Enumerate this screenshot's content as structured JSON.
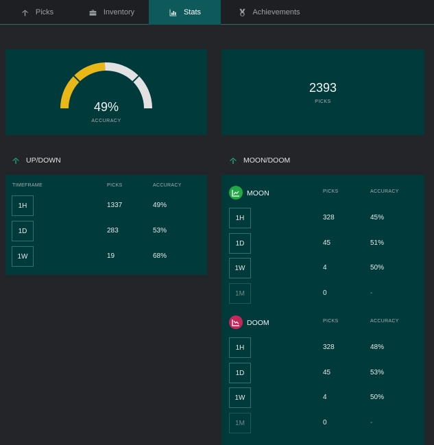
{
  "tabs": [
    {
      "label": "Picks",
      "icon": "pickaxe-icon"
    },
    {
      "label": "Inventory",
      "icon": "briefcase-icon"
    },
    {
      "label": "Stats",
      "icon": "bar-chart-icon",
      "active": true
    },
    {
      "label": "Achievements",
      "icon": "medal-icon"
    }
  ],
  "accuracy": {
    "value": "49%",
    "label": "ACCURACY",
    "fraction": 0.49,
    "fill_color": "#eab718",
    "track_color": "#e2e2e2"
  },
  "total_picks": {
    "value": "2393",
    "label": "PICKS"
  },
  "updown": {
    "title": "UP/DOWN",
    "headers": {
      "timeframe": "TIMEFRAME",
      "picks": "PICKS",
      "accuracy": "ACCURACY"
    },
    "rows": [
      {
        "timeframe": "1H",
        "picks": "1337",
        "accuracy": "49%"
      },
      {
        "timeframe": "1D",
        "picks": "283",
        "accuracy": "53%"
      },
      {
        "timeframe": "1W",
        "picks": "19",
        "accuracy": "68%"
      }
    ]
  },
  "moondoom": {
    "title": "MOON/DOOM",
    "moon": {
      "name": "MOON",
      "color": "#22a844",
      "headers": {
        "picks": "PICKS",
        "accuracy": "ACCURACY"
      },
      "rows": [
        {
          "timeframe": "1H",
          "picks": "328",
          "accuracy": "45%"
        },
        {
          "timeframe": "1D",
          "picks": "45",
          "accuracy": "51%"
        },
        {
          "timeframe": "1W",
          "picks": "4",
          "accuracy": "50%"
        },
        {
          "timeframe": "1M",
          "picks": "0",
          "accuracy": "-"
        }
      ]
    },
    "doom": {
      "name": "DOOM",
      "color": "#c2285a",
      "headers": {
        "picks": "PICKS",
        "accuracy": "ACCURACY"
      },
      "rows": [
        {
          "timeframe": "1H",
          "picks": "328",
          "accuracy": "48%"
        },
        {
          "timeframe": "1D",
          "picks": "45",
          "accuracy": "53%"
        },
        {
          "timeframe": "1W",
          "picks": "4",
          "accuracy": "50%"
        },
        {
          "timeframe": "1M",
          "picks": "0",
          "accuracy": "-"
        }
      ]
    }
  }
}
